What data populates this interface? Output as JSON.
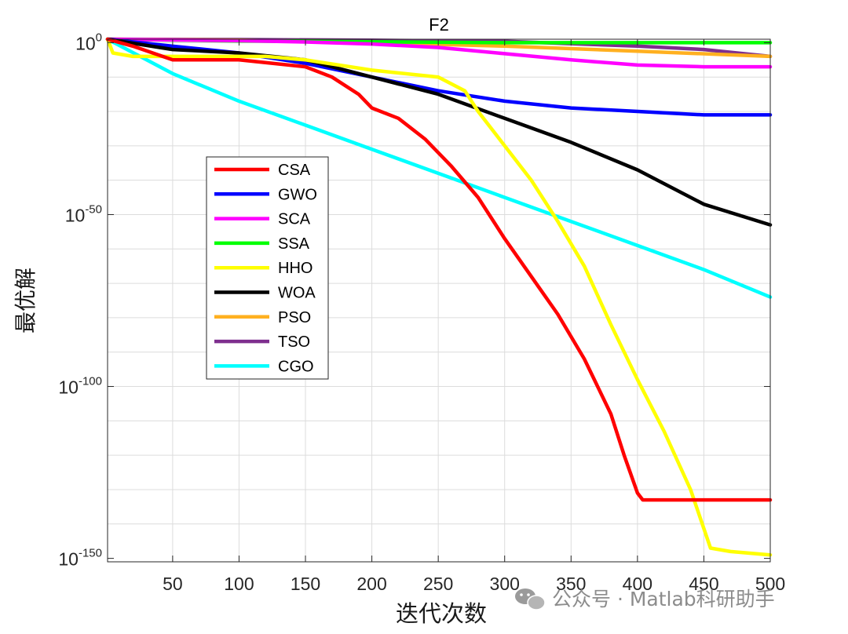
{
  "chart_data": {
    "type": "line",
    "title": "F2",
    "xlabel": "迭代次数",
    "ylabel": "最优解",
    "yscale": "log",
    "xlim": [
      1,
      500
    ],
    "ylim_exp": [
      -151,
      1
    ],
    "grid": true,
    "legend_location": "center-left",
    "xticks": [
      {
        "value": 50,
        "label": "50"
      },
      {
        "value": 100,
        "label": "100"
      },
      {
        "value": 150,
        "label": "150"
      },
      {
        "value": 200,
        "label": "200"
      },
      {
        "value": 250,
        "label": "250"
      },
      {
        "value": 300,
        "label": "300"
      },
      {
        "value": 350,
        "label": "350"
      },
      {
        "value": 400,
        "label": "400"
      },
      {
        "value": 450,
        "label": "450"
      },
      {
        "value": 500,
        "label": "500"
      }
    ],
    "yticks": [
      {
        "exp": 0,
        "base": "10",
        "sup": "0"
      },
      {
        "exp": -50,
        "base": "10",
        "sup": "-50"
      },
      {
        "exp": -100,
        "base": "10",
        "sup": "-100"
      },
      {
        "exp": -150,
        "base": "10",
        "sup": "-150"
      }
    ],
    "series": [
      {
        "name": "CSA",
        "color": "#FF0000",
        "points": [
          [
            1,
            1
          ],
          [
            20,
            -1
          ],
          [
            50,
            -5
          ],
          [
            100,
            -5
          ],
          [
            150,
            -7
          ],
          [
            170,
            -10
          ],
          [
            190,
            -15
          ],
          [
            200,
            -19
          ],
          [
            220,
            -22
          ],
          [
            240,
            -28
          ],
          [
            260,
            -36
          ],
          [
            280,
            -45
          ],
          [
            300,
            -57
          ],
          [
            320,
            -68
          ],
          [
            340,
            -79
          ],
          [
            360,
            -92
          ],
          [
            380,
            -108
          ],
          [
            390,
            -120
          ],
          [
            400,
            -131
          ],
          [
            404,
            -133
          ],
          [
            420,
            -133
          ],
          [
            500,
            -133
          ]
        ]
      },
      {
        "name": "GWO",
        "color": "#0000FF",
        "points": [
          [
            1,
            1
          ],
          [
            50,
            -1
          ],
          [
            100,
            -3
          ],
          [
            150,
            -6
          ],
          [
            200,
            -10
          ],
          [
            250,
            -14
          ],
          [
            300,
            -17
          ],
          [
            350,
            -19
          ],
          [
            400,
            -20
          ],
          [
            450,
            -21
          ],
          [
            500,
            -21
          ]
        ]
      },
      {
        "name": "SCA",
        "color": "#FF00FF",
        "points": [
          [
            1,
            1
          ],
          [
            50,
            0.8
          ],
          [
            100,
            0.6
          ],
          [
            150,
            0.2
          ],
          [
            200,
            -0.4
          ],
          [
            250,
            -1.4
          ],
          [
            300,
            -3.2
          ],
          [
            350,
            -5
          ],
          [
            400,
            -6.5
          ],
          [
            450,
            -7
          ],
          [
            500,
            -7
          ]
        ]
      },
      {
        "name": "SSA",
        "color": "#00FF00",
        "points": [
          [
            1,
            1
          ],
          [
            100,
            0.5
          ],
          [
            300,
            0
          ],
          [
            500,
            0
          ]
        ]
      },
      {
        "name": "HHO",
        "color": "#FFFF00",
        "points": [
          [
            1,
            1
          ],
          [
            5,
            -3
          ],
          [
            20,
            -4
          ],
          [
            100,
            -4
          ],
          [
            120,
            -4
          ],
          [
            150,
            -5
          ],
          [
            200,
            -8
          ],
          [
            250,
            -10
          ],
          [
            270,
            -14
          ],
          [
            280,
            -20
          ],
          [
            300,
            -30
          ],
          [
            320,
            -40
          ],
          [
            340,
            -52
          ],
          [
            360,
            -65
          ],
          [
            380,
            -82
          ],
          [
            400,
            -98
          ],
          [
            420,
            -113
          ],
          [
            440,
            -130
          ],
          [
            455,
            -147
          ],
          [
            470,
            -148
          ],
          [
            500,
            -149
          ]
        ]
      },
      {
        "name": "WOA",
        "color": "#000000",
        "points": [
          [
            1,
            1
          ],
          [
            50,
            -2
          ],
          [
            100,
            -3
          ],
          [
            150,
            -5
          ],
          [
            200,
            -10
          ],
          [
            250,
            -15
          ],
          [
            300,
            -22
          ],
          [
            350,
            -29
          ],
          [
            400,
            -37
          ],
          [
            450,
            -47
          ],
          [
            500,
            -53
          ]
        ]
      },
      {
        "name": "PSO",
        "color": "#FFB020",
        "points": [
          [
            1,
            1
          ],
          [
            100,
            0.7
          ],
          [
            200,
            0
          ],
          [
            300,
            -1
          ],
          [
            400,
            -2.5
          ],
          [
            500,
            -4
          ]
        ]
      },
      {
        "name": "TSO",
        "color": "#7E2F8E",
        "points": [
          [
            1,
            1
          ],
          [
            100,
            0.9
          ],
          [
            200,
            0.7
          ],
          [
            300,
            0.4
          ],
          [
            400,
            -1
          ],
          [
            450,
            -2
          ],
          [
            500,
            -4
          ]
        ]
      },
      {
        "name": "CGO",
        "color": "#00FFFF",
        "points": [
          [
            1,
            1
          ],
          [
            50,
            -9
          ],
          [
            100,
            -17
          ],
          [
            150,
            -24
          ],
          [
            200,
            -31
          ],
          [
            250,
            -38
          ],
          [
            300,
            -45
          ],
          [
            350,
            -52
          ],
          [
            400,
            -59
          ],
          [
            450,
            -66
          ],
          [
            500,
            -74
          ]
        ]
      }
    ]
  },
  "watermark": {
    "text": "公众号 · Matlab科研助手"
  }
}
